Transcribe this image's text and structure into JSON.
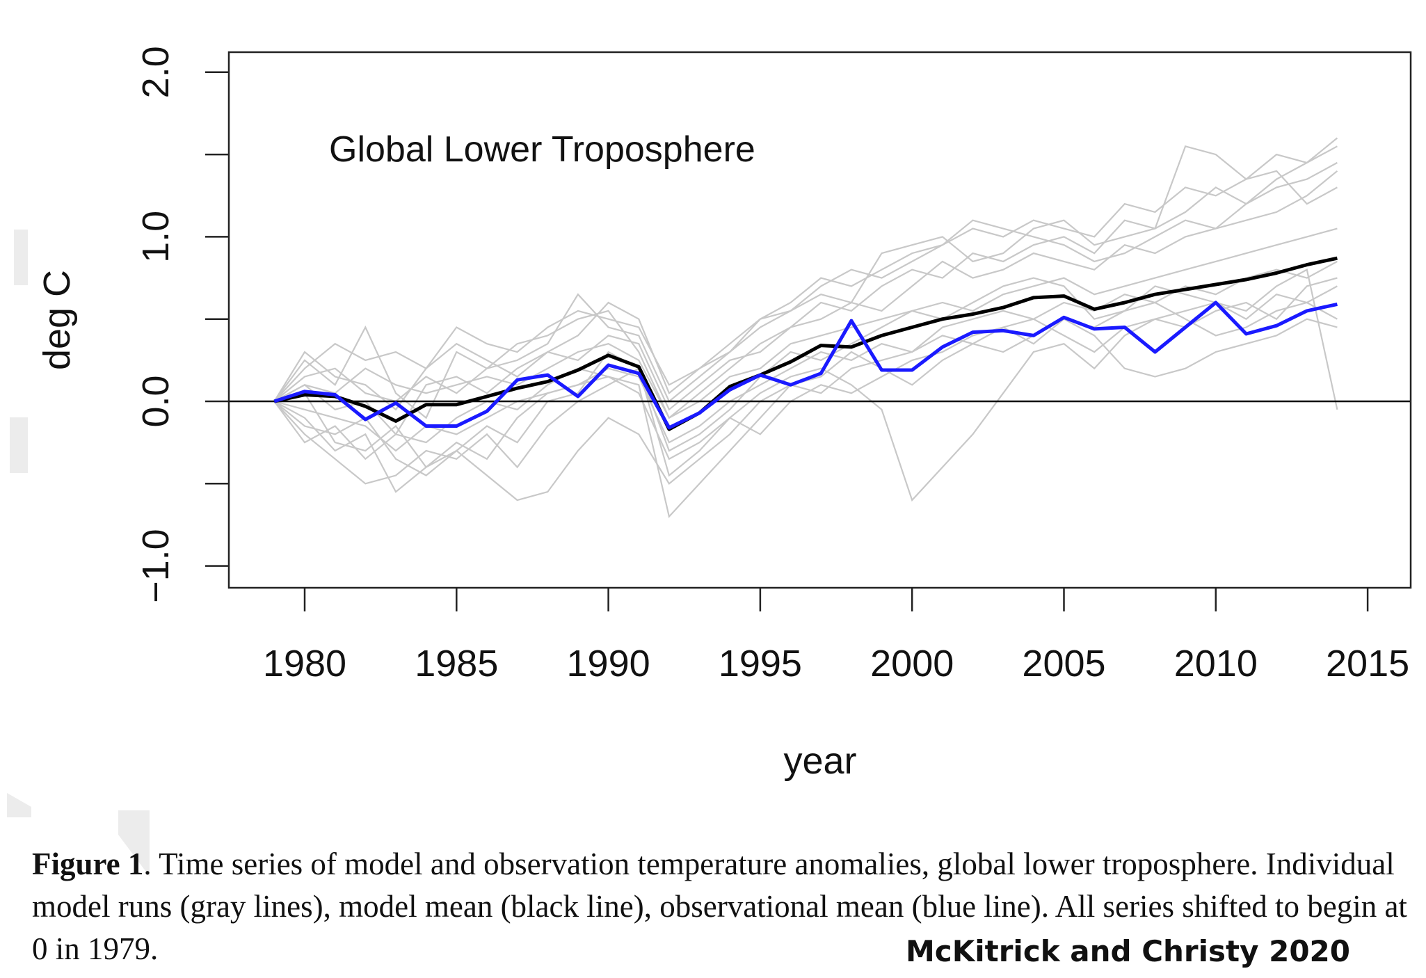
{
  "chart_data": {
    "type": "line",
    "title": "Global Lower Troposphere",
    "xlabel": "year",
    "ylabel": "deg C",
    "xlim": [
      1979,
      2014
    ],
    "ylim": [
      -1.1,
      2.1
    ],
    "x_ticks": [
      1980,
      1985,
      1990,
      1995,
      2000,
      2005,
      2010,
      2015
    ],
    "x_tick_labels": [
      "1980",
      "1985",
      "1990",
      "1995",
      "2000",
      "2005",
      "2010",
      "2015"
    ],
    "y_ticks": [
      -1.0,
      -0.5,
      0.0,
      0.5,
      1.0,
      1.5,
      2.0
    ],
    "y_tick_labels": [
      "-1.0",
      "",
      "0.0",
      "",
      "1.0",
      "",
      "2.0"
    ],
    "grid": false,
    "reference_line_y": 0,
    "x": [
      1979,
      1980,
      1981,
      1982,
      1983,
      1984,
      1985,
      1986,
      1987,
      1988,
      1989,
      1990,
      1991,
      1992,
      1993,
      1994,
      1995,
      1996,
      1997,
      1998,
      1999,
      2000,
      2001,
      2002,
      2003,
      2004,
      2005,
      2006,
      2007,
      2008,
      2009,
      2010,
      2011,
      2012,
      2013,
      2014
    ],
    "colors": {
      "model_runs": "#c8c8c8",
      "model_mean": "#000000",
      "observations": "#1a1aff"
    },
    "model_runs": [
      [
        0,
        0.25,
        0.1,
        0.45,
        0.05,
        -0.1,
        0.3,
        0.2,
        0.35,
        0.4,
        0.5,
        0.55,
        0.3,
        -0.1,
        0.05,
        0.2,
        0.35,
        0.45,
        0.6,
        0.55,
        0.7,
        0.8,
        0.75,
        0.9,
        0.85,
        0.95,
        1.0,
        0.9,
        1.1,
        1.05,
        1.15,
        1.3,
        1.2,
        1.35,
        1.45,
        1.6
      ],
      [
        0,
        -0.2,
        -0.35,
        -0.5,
        -0.45,
        -0.3,
        -0.35,
        -0.2,
        -0.4,
        -0.15,
        0,
        0.1,
        0.2,
        -0.45,
        -0.3,
        -0.1,
        0.05,
        0.15,
        0.2,
        0.1,
        -0.05,
        -0.6,
        -0.4,
        -0.2,
        0.05,
        0.3,
        0.35,
        0.2,
        0.4,
        0.5,
        0.45,
        0.55,
        0.6,
        0.5,
        0.7,
        0.75
      ],
      [
        0,
        0.1,
        -0.05,
        0,
        -0.2,
        0.1,
        0.15,
        0.05,
        0.2,
        0.3,
        0.25,
        0.4,
        0.35,
        -0.05,
        0.1,
        0.25,
        0.3,
        0.45,
        0.5,
        0.6,
        0.55,
        0.7,
        0.85,
        0.75,
        0.8,
        0.9,
        0.85,
        0.8,
        0.95,
        0.9,
        1.0,
        1.05,
        1.1,
        1.15,
        1.25,
        1.4
      ],
      [
        0,
        -0.1,
        -0.3,
        -0.2,
        -0.55,
        -0.4,
        -0.25,
        -0.35,
        -0.1,
        0.05,
        0.1,
        0.15,
        0.1,
        -0.7,
        -0.5,
        -0.3,
        -0.1,
        0.1,
        0.05,
        0.2,
        0.25,
        0.3,
        0.4,
        0.35,
        0.45,
        0.5,
        0.4,
        0.3,
        0.45,
        0.5,
        0.55,
        0.6,
        0.5,
        0.65,
        0.6,
        0.7
      ],
      [
        0,
        0.15,
        0.2,
        0.05,
        0,
        0.15,
        0.05,
        0.2,
        0.25,
        0.35,
        0.65,
        0.45,
        0.4,
        0,
        0.15,
        0.3,
        0.45,
        0.55,
        0.65,
        0.6,
        0.9,
        0.95,
        1.0,
        0.85,
        0.9,
        1.05,
        1.1,
        0.95,
        1.0,
        1.05,
        1.55,
        1.5,
        1.35,
        1.4,
        1.2,
        1.3
      ],
      [
        0,
        -0.05,
        -0.1,
        -0.15,
        -0.3,
        -0.15,
        -0.2,
        -0.1,
        0,
        0.05,
        0.1,
        0.2,
        0.15,
        -0.25,
        -0.15,
        0,
        0.1,
        0.2,
        0.3,
        0.25,
        0.35,
        0.3,
        0.45,
        0.5,
        0.55,
        0.5,
        0.6,
        0.55,
        0.65,
        0.6,
        0.7,
        0.65,
        0.75,
        0.8,
        0.75,
        0.85
      ],
      [
        0,
        0.05,
        -0.25,
        -0.3,
        -0.15,
        -0.4,
        -0.3,
        -0.45,
        -0.6,
        -0.55,
        -0.3,
        -0.1,
        -0.2,
        -0.5,
        -0.35,
        -0.2,
        0,
        0.1,
        0.15,
        0.3,
        0.2,
        0.1,
        0.25,
        0.35,
        0.3,
        0.4,
        0.5,
        0.4,
        0.2,
        0.15,
        0.2,
        0.3,
        0.35,
        0.4,
        0.5,
        0.45
      ],
      [
        0,
        0.3,
        0.15,
        0.1,
        -0.05,
        0.2,
        0.35,
        0.25,
        0.15,
        0.3,
        0.4,
        0.6,
        0.5,
        0.05,
        0.2,
        0.35,
        0.5,
        0.6,
        0.75,
        0.7,
        0.8,
        0.9,
        0.95,
        1.1,
        1.05,
        1.0,
        0.95,
        0.85,
        0.9,
        1.0,
        1.1,
        1.05,
        1.2,
        1.3,
        1.35,
        1.45
      ],
      [
        0,
        -0.15,
        -0.2,
        -0.1,
        -0.35,
        -0.45,
        -0.3,
        -0.15,
        -0.25,
        0,
        0.05,
        0.3,
        0.2,
        -0.3,
        -0.2,
        -0.05,
        0.15,
        0.3,
        0.25,
        0.35,
        0.45,
        0.55,
        0.5,
        0.6,
        0.7,
        0.75,
        0.7,
        0.5,
        0.55,
        0.6,
        0.5,
        0.4,
        0.45,
        0.55,
        0.6,
        0.5
      ],
      [
        0,
        0.1,
        0.05,
        0.2,
        0.1,
        0.05,
        0.1,
        0.15,
        0.1,
        0.2,
        0.3,
        0.35,
        0.25,
        -0.1,
        0,
        0.15,
        0.2,
        0.35,
        0.4,
        0.45,
        0.5,
        0.55,
        0.6,
        0.55,
        0.65,
        0.7,
        0.75,
        0.65,
        0.7,
        0.75,
        0.8,
        0.85,
        0.9,
        0.95,
        1.0,
        1.05
      ],
      [
        0,
        -0.25,
        -0.15,
        -0.35,
        -0.2,
        -0.25,
        -0.1,
        0,
        -0.05,
        0.1,
        0.2,
        0.15,
        0.05,
        -0.35,
        -0.25,
        -0.1,
        -0.2,
        0,
        0.1,
        0.05,
        0.15,
        0.25,
        0.3,
        0.4,
        0.45,
        0.35,
        0.5,
        0.45,
        0.55,
        0.7,
        0.65,
        0.6,
        0.55,
        0.7,
        0.8,
        -0.05
      ],
      [
        0,
        0.2,
        0.35,
        0.25,
        0.3,
        0.2,
        0.45,
        0.35,
        0.3,
        0.45,
        0.55,
        0.5,
        0.45,
        0.1,
        0.2,
        0.3,
        0.5,
        0.55,
        0.7,
        0.8,
        0.75,
        0.85,
        0.95,
        1.05,
        1.0,
        1.1,
        1.05,
        1.0,
        1.2,
        1.15,
        1.3,
        1.25,
        1.35,
        1.5,
        1.45,
        1.55
      ]
    ],
    "model_mean": [
      0,
      0.04,
      0.03,
      -0.03,
      -0.12,
      -0.02,
      -0.02,
      0.03,
      0.08,
      0.12,
      0.19,
      0.28,
      0.21,
      -0.17,
      -0.07,
      0.09,
      0.16,
      0.24,
      0.34,
      0.33,
      0.4,
      0.45,
      0.5,
      0.53,
      0.57,
      0.63,
      0.64,
      0.56,
      0.6,
      0.65,
      0.68,
      0.71,
      0.74,
      0.78,
      0.83,
      0.87
    ],
    "observations": [
      0,
      0.06,
      0.04,
      -0.11,
      -0.01,
      -0.15,
      -0.15,
      -0.06,
      0.13,
      0.16,
      0.03,
      0.22,
      0.17,
      -0.16,
      -0.07,
      0.07,
      0.16,
      0.1,
      0.17,
      0.49,
      0.19,
      0.19,
      0.33,
      0.42,
      0.43,
      0.4,
      0.51,
      0.44,
      0.45,
      0.3,
      0.45,
      0.6,
      0.41,
      0.46,
      0.55,
      0.59
    ]
  },
  "caption": {
    "label": "Figure 1",
    "text": ". Time series of model and observation temperature anomalies, global lower troposphere. Individual model runs (gray lines), model mean (black line), observational mean (blue line). All series shifted to begin at 0 in 1979."
  },
  "credit": "McKitrick and Christy 2020"
}
